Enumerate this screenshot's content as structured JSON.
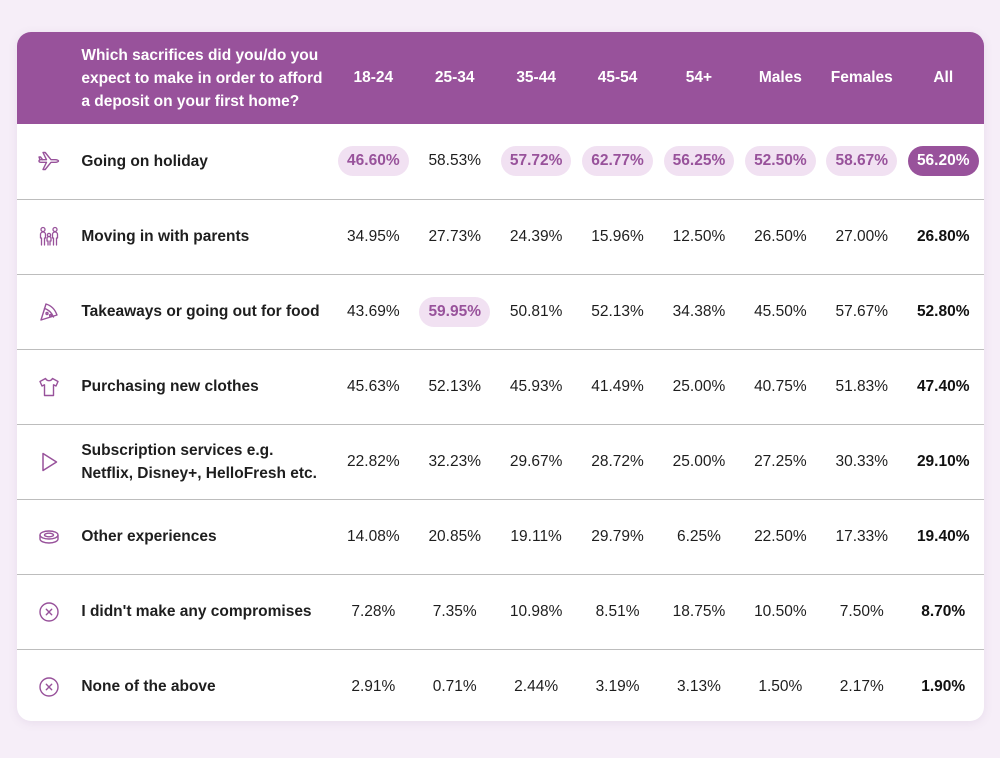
{
  "colors": {
    "accent": "#98529b",
    "highlight_bg": "#f1e1f2",
    "page_bg": "#f6eef8"
  },
  "header": {
    "question": "Which sacrifices did you/do you expect to make in order to afford a deposit on your first home?",
    "columns": [
      "18-24",
      "25-34",
      "35-44",
      "45-54",
      "54+",
      "Males",
      "Females",
      "All"
    ]
  },
  "rows": [
    {
      "icon": "airplane-icon",
      "label": "Going on holiday",
      "values": [
        "46.60%",
        "58.53%",
        "57.72%",
        "62.77%",
        "56.25%",
        "52.50%",
        "58.67%",
        "56.20%"
      ]
    },
    {
      "icon": "family-icon",
      "label": "Moving in with parents",
      "values": [
        "34.95%",
        "27.73%",
        "24.39%",
        "15.96%",
        "12.50%",
        "26.50%",
        "27.00%",
        "26.80%"
      ]
    },
    {
      "icon": "pizza-slice-icon",
      "label": "Takeaways or going out for food",
      "values": [
        "43.69%",
        "59.95%",
        "50.81%",
        "52.13%",
        "34.38%",
        "45.50%",
        "57.67%",
        "52.80%"
      ]
    },
    {
      "icon": "tshirt-icon",
      "label": "Purchasing new clothes",
      "values": [
        "45.63%",
        "52.13%",
        "45.93%",
        "41.49%",
        "25.00%",
        "40.75%",
        "51.83%",
        "47.40%"
      ]
    },
    {
      "icon": "play-icon",
      "label": "Subscription services e.g. Netflix, Disney+, HelloFresh etc.",
      "values": [
        "22.82%",
        "32.23%",
        "29.67%",
        "28.72%",
        "25.00%",
        "27.25%",
        "30.33%",
        "29.10%"
      ]
    },
    {
      "icon": "ticket-icon",
      "label": "Other experiences",
      "values": [
        "14.08%",
        "20.85%",
        "19.11%",
        "29.79%",
        "6.25%",
        "22.50%",
        "17.33%",
        "19.40%"
      ]
    },
    {
      "icon": "x-circle-icon",
      "label": "I didn't make any compromises",
      "values": [
        "7.28%",
        "7.35%",
        "10.98%",
        "8.51%",
        "18.75%",
        "10.50%",
        "7.50%",
        "8.70%"
      ]
    },
    {
      "icon": "x-circle-icon",
      "label": "None of the above",
      "values": [
        "2.91%",
        "0.71%",
        "2.44%",
        "3.19%",
        "3.13%",
        "1.50%",
        "2.17%",
        "1.90%"
      ]
    }
  ]
}
